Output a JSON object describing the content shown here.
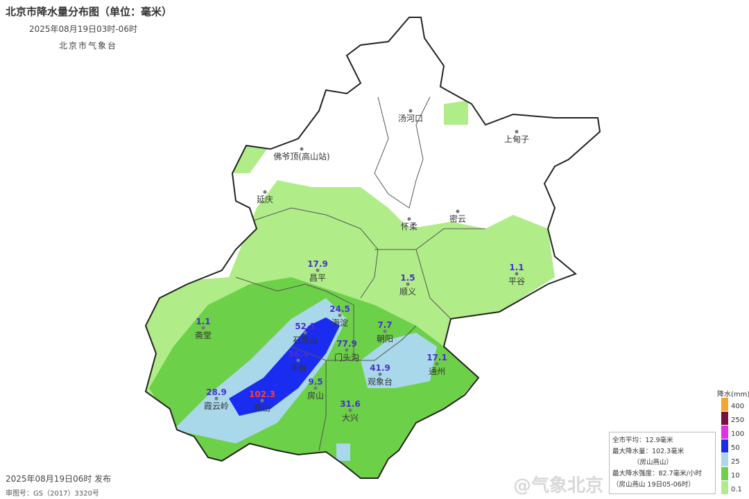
{
  "header": {
    "title": "北京市降水量分布图（单位：毫米）",
    "subtitle": "2025年08月19日03时-06时",
    "agency": "北京市气象台"
  },
  "footer": {
    "publish": "2025年08月19日06时 发布",
    "approval": "审图号：GS（2017）3320号"
  },
  "stations": [
    {
      "name": "汤河口",
      "value": ""
    },
    {
      "name": "上甸子",
      "value": ""
    },
    {
      "name": "佛爷顶(高山站)",
      "value": ""
    },
    {
      "name": "延庆",
      "value": ""
    },
    {
      "name": "怀柔",
      "value": ""
    },
    {
      "name": "密云",
      "value": ""
    },
    {
      "name": "昌平",
      "value": "17.9"
    },
    {
      "name": "顺义",
      "value": "1.5"
    },
    {
      "name": "平谷",
      "value": "1.1"
    },
    {
      "name": "斋堂",
      "value": "1.1"
    },
    {
      "name": "海淀",
      "value": "24.5"
    },
    {
      "name": "石景山",
      "value": "52.1"
    },
    {
      "name": "门头沟",
      "value": "77.9"
    },
    {
      "name": "丰台",
      "value": "36.4"
    },
    {
      "name": "朝阳",
      "value": "7.7"
    },
    {
      "name": "通州",
      "value": "17.1"
    },
    {
      "name": "观象台",
      "value": "41.9"
    },
    {
      "name": "霞云岭",
      "value": "28.9"
    },
    {
      "name": "燕山",
      "value": "102.3"
    },
    {
      "name": "房山",
      "value": "9.5"
    },
    {
      "name": "大兴",
      "value": "31.6"
    }
  ],
  "max_station_color": "#ff3b3b",
  "value_color": "#4a2fd0",
  "legend": {
    "title": "降水(mm)",
    "levels": [
      {
        "label": "400",
        "color": "#f0a830"
      },
      {
        "label": "250",
        "color": "#7a1040"
      },
      {
        "label": "100",
        "color": "#e030e8"
      },
      {
        "label": "50",
        "color": "#1a2cf0"
      },
      {
        "label": "25",
        "color": "#a8d8ea"
      },
      {
        "label": "10",
        "color": "#6cd048"
      },
      {
        "label": "0.1",
        "color": "#b0ec88"
      }
    ]
  },
  "stats": {
    "avg": "全市平均：12.9毫米",
    "max": "最大降水量：102.3毫米",
    "max_loc": "（房山燕山）",
    "intensity": "最大降水强度：82.7毫米/小时",
    "intensity_loc": "（房山燕山 19日05-06时）"
  },
  "watermark": "@气象北京"
}
